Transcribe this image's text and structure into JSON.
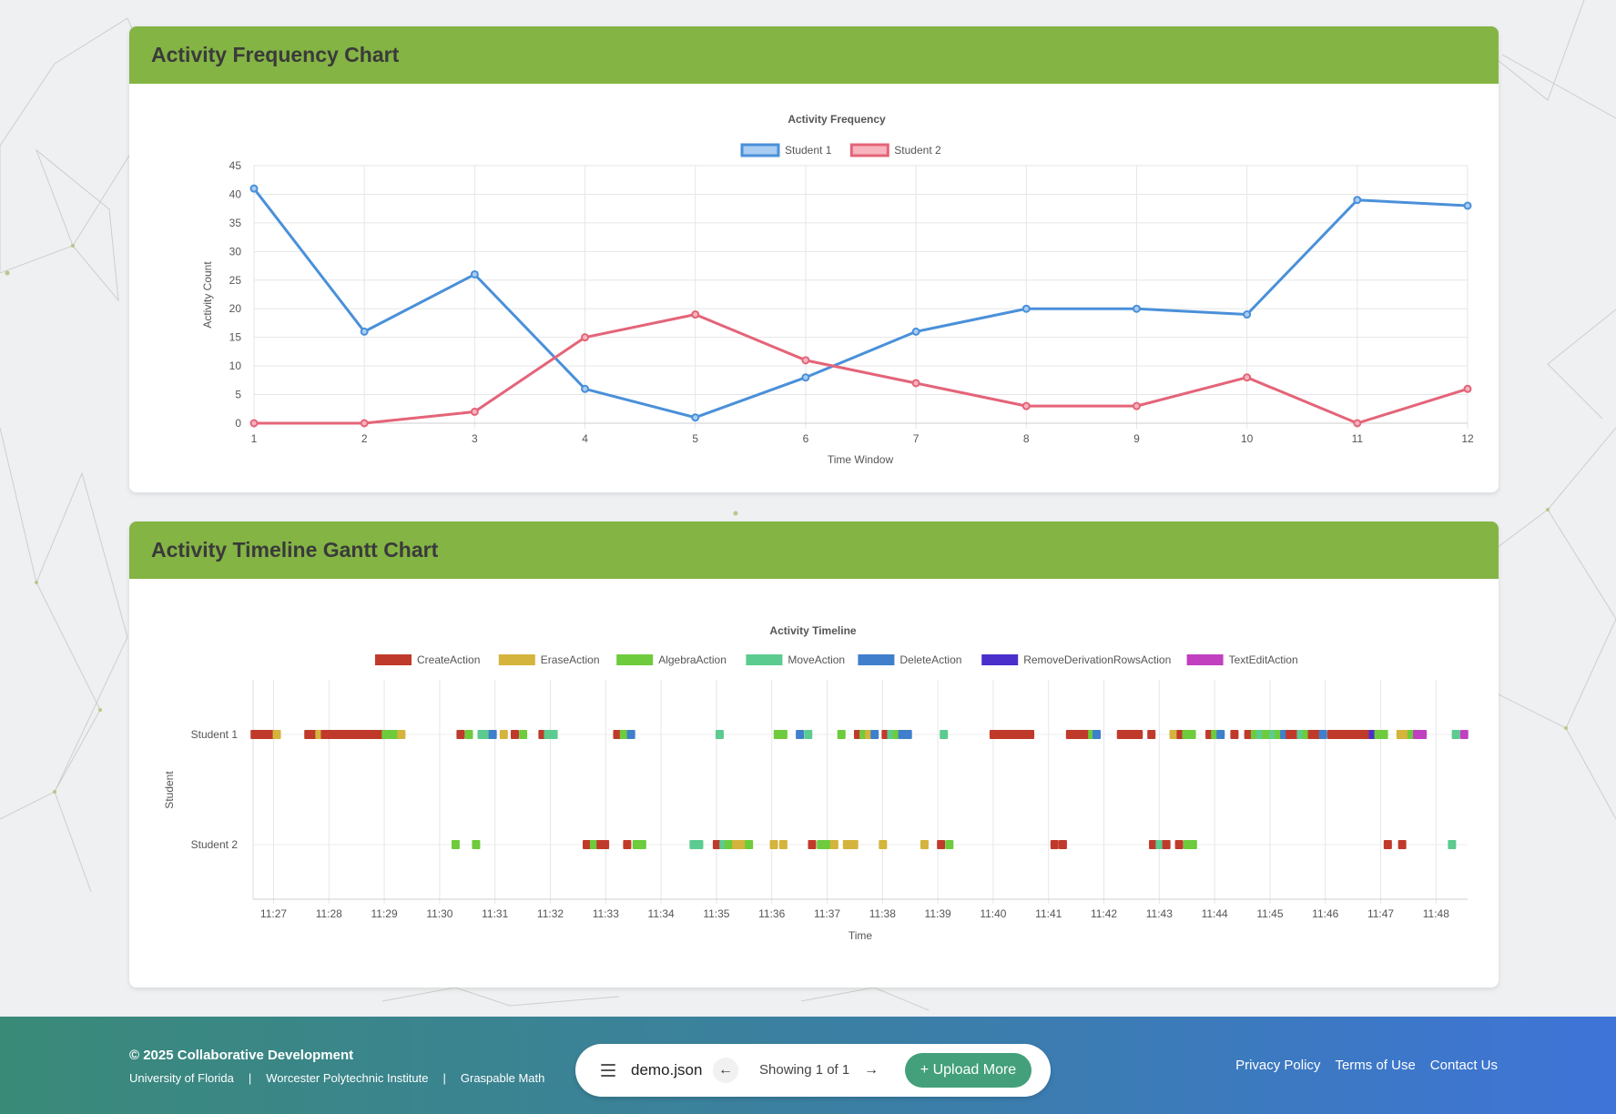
{
  "cards": {
    "frequency_title": "Activity Frequency Chart",
    "gantt_title": "Activity Timeline Gantt Chart"
  },
  "chart_data": [
    {
      "type": "line",
      "title": "Activity Frequency",
      "xlabel": "Time Window",
      "ylabel": "Activity Count",
      "x": [
        1,
        2,
        3,
        4,
        5,
        6,
        7,
        8,
        9,
        10,
        11,
        12
      ],
      "ylim": [
        0,
        45
      ],
      "yticks": [
        0,
        5,
        10,
        15,
        20,
        25,
        30,
        35,
        40,
        45
      ],
      "grid": true,
      "legend": "top-center",
      "series": [
        {
          "name": "Student 1",
          "color": "#4a90d9",
          "fill": "#a9cdf2",
          "values": [
            41,
            16,
            26,
            6,
            1,
            8,
            16,
            20,
            20,
            19,
            39,
            38
          ]
        },
        {
          "name": "Student 2",
          "color": "#e46478",
          "fill": "#f7b4bf",
          "values": [
            0,
            0,
            2,
            15,
            19,
            11,
            7,
            3,
            3,
            8,
            0,
            6
          ]
        }
      ]
    },
    {
      "type": "gantt",
      "title": "Activity Timeline",
      "xlabel": "Time",
      "ylabel": "Student",
      "xticks": [
        "11:27",
        "11:28",
        "11:29",
        "11:30",
        "11:31",
        "11:32",
        "11:33",
        "11:34",
        "11:35",
        "11:36",
        "11:37",
        "11:38",
        "11:39",
        "11:40",
        "11:41",
        "11:42",
        "11:43",
        "11:44",
        "11:45",
        "11:46",
        "11:47",
        "11:48"
      ],
      "xlim_minutes": [
        26.63,
        48.57
      ],
      "legend": "top-center",
      "action_types": [
        {
          "name": "CreateAction",
          "color": "#c03a2b"
        },
        {
          "name": "EraseAction",
          "color": "#d4b43c"
        },
        {
          "name": "AlgebraAction",
          "color": "#6ecb3c"
        },
        {
          "name": "MoveAction",
          "color": "#5bcb8f"
        },
        {
          "name": "DeleteAction",
          "color": "#3f7fcc"
        },
        {
          "name": "RemoveDerivationRowsAction",
          "color": "#4a2fcc"
        },
        {
          "name": "TextEditAction",
          "color": "#c040c0"
        }
      ],
      "rows": [
        {
          "label": "Student 1",
          "events": [
            [
              26.65,
              "CreateAction"
            ],
            [
              26.7,
              "CreateAction"
            ],
            [
              26.75,
              "CreateAction"
            ],
            [
              26.8,
              "CreateAction"
            ],
            [
              26.85,
              "CreateAction"
            ],
            [
              26.9,
              "CreateAction"
            ],
            [
              26.95,
              "CreateAction"
            ],
            [
              27.05,
              "EraseAction"
            ],
            [
              27.62,
              "CreateAction"
            ],
            [
              27.68,
              "CreateAction"
            ],
            [
              27.74,
              "CreateAction"
            ],
            [
              27.82,
              "EraseAction"
            ],
            [
              27.92,
              "CreateAction"
            ],
            [
              28.0,
              "CreateAction"
            ],
            [
              28.06,
              "CreateAction"
            ],
            [
              28.12,
              "CreateAction"
            ],
            [
              28.18,
              "CreateAction"
            ],
            [
              28.24,
              "CreateAction"
            ],
            [
              28.3,
              "CreateAction"
            ],
            [
              28.36,
              "CreateAction"
            ],
            [
              28.42,
              "CreateAction"
            ],
            [
              28.48,
              "CreateAction"
            ],
            [
              28.54,
              "CreateAction"
            ],
            [
              28.6,
              "CreateAction"
            ],
            [
              28.66,
              "CreateAction"
            ],
            [
              28.72,
              "CreateAction"
            ],
            [
              28.8,
              "CreateAction"
            ],
            [
              28.9,
              "CreateAction"
            ],
            [
              29.02,
              "AlgebraAction"
            ],
            [
              29.1,
              "AlgebraAction"
            ],
            [
              29.18,
              "AlgebraAction"
            ],
            [
              29.3,
              "EraseAction"
            ],
            [
              30.37,
              "CreateAction"
            ],
            [
              30.52,
              "AlgebraAction"
            ],
            [
              30.75,
              "MoveAction"
            ],
            [
              30.85,
              "MoveAction"
            ],
            [
              30.95,
              "DeleteAction"
            ],
            [
              31.15,
              "EraseAction"
            ],
            [
              31.35,
              "CreateAction"
            ],
            [
              31.5,
              "AlgebraAction"
            ],
            [
              31.85,
              "CreateAction"
            ],
            [
              31.95,
              "MoveAction"
            ],
            [
              32.05,
              "MoveAction"
            ],
            [
              33.2,
              "CreateAction"
            ],
            [
              33.32,
              "AlgebraAction"
            ],
            [
              33.45,
              "DeleteAction"
            ],
            [
              35.05,
              "MoveAction"
            ],
            [
              36.1,
              "AlgebraAction"
            ],
            [
              36.2,
              "AlgebraAction"
            ],
            [
              36.5,
              "DeleteAction"
            ],
            [
              36.65,
              "MoveAction"
            ],
            [
              37.25,
              "AlgebraAction"
            ],
            [
              37.55,
              "CreateAction"
            ],
            [
              37.65,
              "AlgebraAction"
            ],
            [
              37.75,
              "EraseAction"
            ],
            [
              37.85,
              "DeleteAction"
            ],
            [
              38.05,
              "CreateAction"
            ],
            [
              38.15,
              "MoveAction"
            ],
            [
              38.25,
              "AlgebraAction"
            ],
            [
              38.35,
              "DeleteAction"
            ],
            [
              38.45,
              "DeleteAction"
            ],
            [
              39.1,
              "MoveAction"
            ],
            [
              40.0,
              "CreateAction"
            ],
            [
              40.07,
              "CreateAction"
            ],
            [
              40.14,
              "CreateAction"
            ],
            [
              40.21,
              "CreateAction"
            ],
            [
              40.28,
              "CreateAction"
            ],
            [
              40.35,
              "CreateAction"
            ],
            [
              40.42,
              "CreateAction"
            ],
            [
              40.5,
              "CreateAction"
            ],
            [
              40.58,
              "CreateAction"
            ],
            [
              40.66,
              "CreateAction"
            ],
            [
              41.38,
              "CreateAction"
            ],
            [
              41.46,
              "CreateAction"
            ],
            [
              41.56,
              "CreateAction"
            ],
            [
              41.66,
              "CreateAction"
            ],
            [
              41.78,
              "AlgebraAction"
            ],
            [
              41.86,
              "DeleteAction"
            ],
            [
              42.3,
              "CreateAction"
            ],
            [
              42.38,
              "CreateAction"
            ],
            [
              42.46,
              "CreateAction"
            ],
            [
              42.54,
              "CreateAction"
            ],
            [
              42.62,
              "CreateAction"
            ],
            [
              42.85,
              "CreateAction"
            ],
            [
              43.25,
              "EraseAction"
            ],
            [
              43.38,
              "CreateAction"
            ],
            [
              43.48,
              "AlgebraAction"
            ],
            [
              43.58,
              "AlgebraAction"
            ],
            [
              43.9,
              "CreateAction"
            ],
            [
              44.0,
              "AlgebraAction"
            ],
            [
              44.1,
              "DeleteAction"
            ],
            [
              44.35,
              "CreateAction"
            ],
            [
              44.6,
              "CreateAction"
            ],
            [
              44.72,
              "AlgebraAction"
            ],
            [
              44.82,
              "MoveAction"
            ],
            [
              44.92,
              "AlgebraAction"
            ],
            [
              45.05,
              "MoveAction"
            ],
            [
              45.15,
              "AlgebraAction"
            ],
            [
              45.25,
              "DeleteAction"
            ],
            [
              45.35,
              "CreateAction"
            ],
            [
              45.45,
              "CreateAction"
            ],
            [
              45.55,
              "MoveAction"
            ],
            [
              45.65,
              "AlgebraAction"
            ],
            [
              45.75,
              "CreateAction"
            ],
            [
              45.85,
              "CreateAction"
            ],
            [
              45.95,
              "DeleteAction"
            ],
            [
              46.1,
              "CreateAction"
            ],
            [
              46.16,
              "CreateAction"
            ],
            [
              46.22,
              "CreateAction"
            ],
            [
              46.28,
              "CreateAction"
            ],
            [
              46.34,
              "CreateAction"
            ],
            [
              46.4,
              "CreateAction"
            ],
            [
              46.46,
              "CreateAction"
            ],
            [
              46.52,
              "CreateAction"
            ],
            [
              46.58,
              "CreateAction"
            ],
            [
              46.64,
              "CreateAction"
            ],
            [
              46.7,
              "CreateAction"
            ],
            [
              46.76,
              "CreateAction"
            ],
            [
              46.85,
              "RemoveDerivationRowsAction"
            ],
            [
              46.95,
              "AlgebraAction"
            ],
            [
              47.05,
              "AlgebraAction"
            ],
            [
              47.35,
              "EraseAction"
            ],
            [
              47.45,
              "EraseAction"
            ],
            [
              47.55,
              "AlgebraAction"
            ],
            [
              47.65,
              "TextEditAction"
            ],
            [
              47.75,
              "TextEditAction"
            ],
            [
              48.35,
              "MoveAction"
            ],
            [
              48.5,
              "TextEditAction"
            ]
          ]
        },
        {
          "label": "Student 2",
          "events": [
            [
              30.28,
              "AlgebraAction"
            ],
            [
              30.65,
              "AlgebraAction"
            ],
            [
              32.65,
              "CreateAction"
            ],
            [
              32.78,
              "AlgebraAction"
            ],
            [
              32.9,
              "CreateAction"
            ],
            [
              32.98,
              "CreateAction"
            ],
            [
              33.38,
              "CreateAction"
            ],
            [
              33.55,
              "AlgebraAction"
            ],
            [
              33.65,
              "AlgebraAction"
            ],
            [
              34.58,
              "MoveAction"
            ],
            [
              34.68,
              "MoveAction"
            ],
            [
              35.0,
              "CreateAction"
            ],
            [
              35.12,
              "MoveAction"
            ],
            [
              35.22,
              "AlgebraAction"
            ],
            [
              35.35,
              "EraseAction"
            ],
            [
              35.48,
              "EraseAction"
            ],
            [
              35.58,
              "AlgebraAction"
            ],
            [
              36.03,
              "EraseAction"
            ],
            [
              36.2,
              "EraseAction"
            ],
            [
              36.72,
              "CreateAction"
            ],
            [
              36.88,
              "AlgebraAction"
            ],
            [
              36.98,
              "AlgebraAction"
            ],
            [
              37.12,
              "EraseAction"
            ],
            [
              37.35,
              "EraseAction"
            ],
            [
              37.48,
              "EraseAction"
            ],
            [
              38.0,
              "EraseAction"
            ],
            [
              38.75,
              "EraseAction"
            ],
            [
              39.05,
              "CreateAction"
            ],
            [
              39.2,
              "AlgebraAction"
            ],
            [
              41.1,
              "CreateAction"
            ],
            [
              41.25,
              "CreateAction"
            ],
            [
              42.88,
              "CreateAction"
            ],
            [
              43.0,
              "MoveAction"
            ],
            [
              43.12,
              "CreateAction"
            ],
            [
              43.35,
              "CreateAction"
            ],
            [
              43.5,
              "AlgebraAction"
            ],
            [
              43.6,
              "AlgebraAction"
            ],
            [
              47.12,
              "CreateAction"
            ],
            [
              47.38,
              "CreateAction"
            ],
            [
              48.28,
              "MoveAction"
            ]
          ]
        }
      ]
    }
  ],
  "footer": {
    "copyright": "© 2025 Collaborative Development",
    "institutions": [
      "University of Florida",
      "Worcester Polytechnic Institute",
      "Graspable Math"
    ],
    "separator": "|",
    "file_name": "demo.json",
    "prev_icon": "←",
    "next_icon": "→",
    "showing": "Showing 1 of 1",
    "upload_label": "+ Upload More",
    "links": [
      "Privacy Policy",
      "Terms of Use",
      "Contact Us"
    ]
  },
  "icons": {
    "menu": "hamburger-menu-icon",
    "prev": "arrow-left-icon",
    "next": "arrow-right-icon"
  }
}
